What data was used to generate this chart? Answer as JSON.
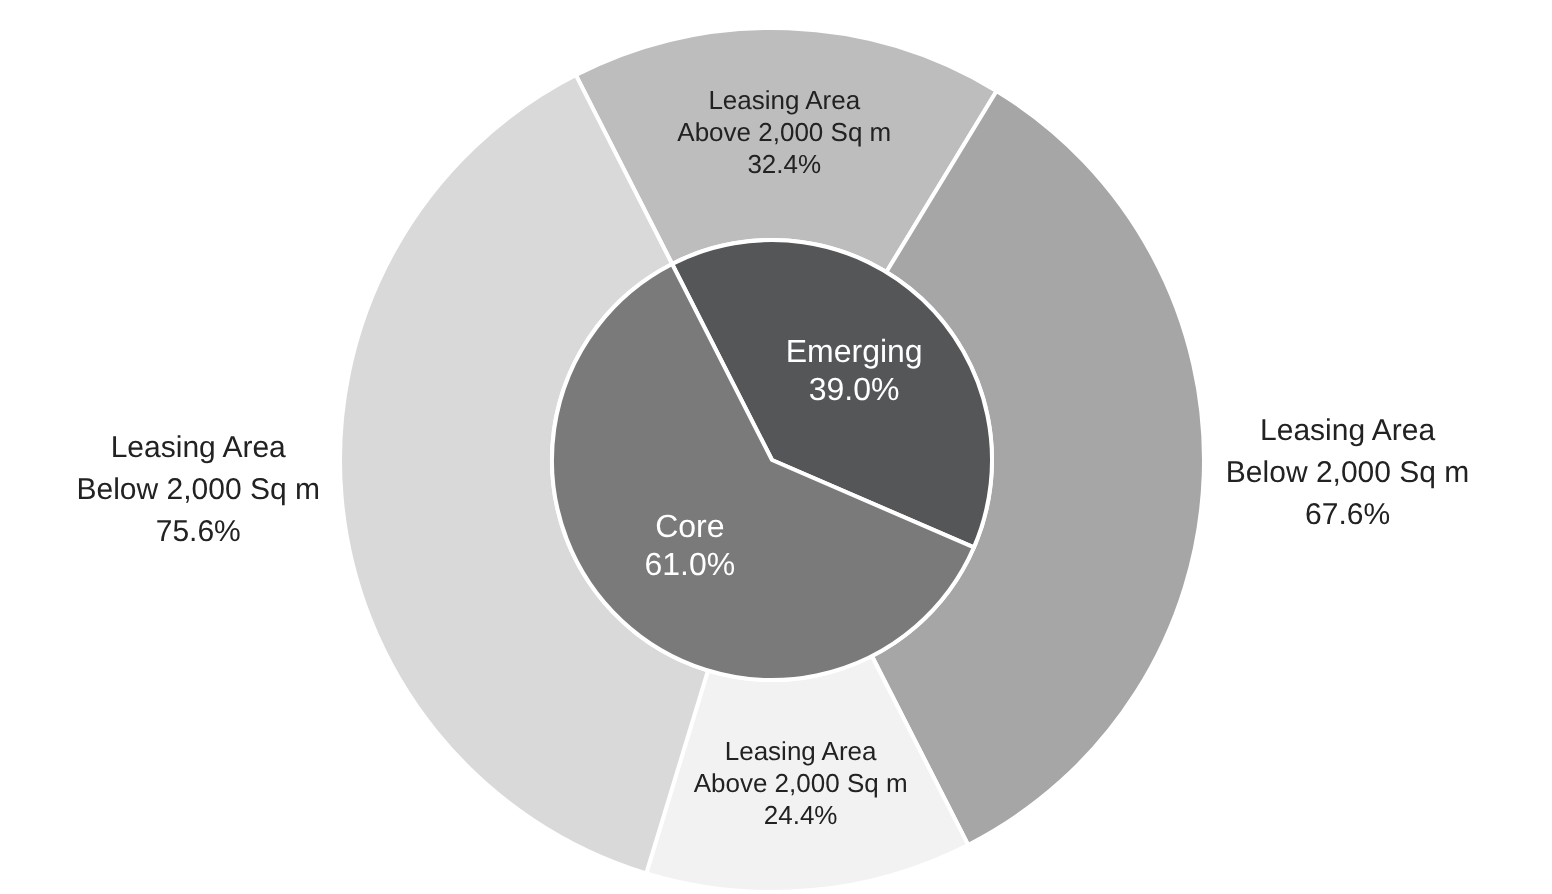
{
  "chart_data": [
    {
      "type": "donut",
      "categories": [
        "Leasing Area\nAbove 2,000 Sq m",
        "Leasing Area\nBelow 2,000 Sq m",
        "Leasing Area\nAbove 2,000 Sq m",
        "Leasing Area\nBelow 2,000 Sq m"
      ],
      "values": [
        32.4,
        67.6,
        24.4,
        75.6
      ],
      "colors": [
        "#bdbdbd",
        "#a6a6a6",
        "#f2f2f2",
        "#d9d9d9"
      ],
      "value_labels": [
        "32.4%",
        "67.6%",
        "24.4%",
        "75.6%"
      ]
    },
    {
      "type": "pie",
      "categories": [
        "Emerging",
        "Core"
      ],
      "values": [
        39.0,
        61.0
      ],
      "colors": [
        "#555658",
        "#7a7a7a"
      ],
      "value_labels": [
        "39.0%",
        "61.0%"
      ]
    }
  ]
}
